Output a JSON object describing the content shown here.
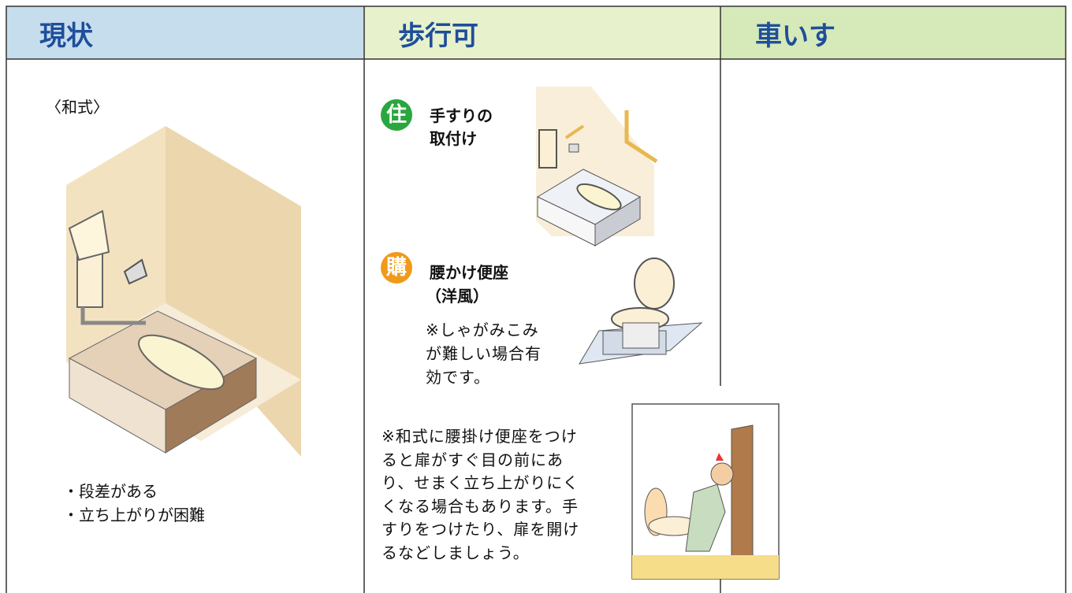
{
  "header": {
    "columns": [
      "現状",
      "歩行可",
      "車いす"
    ]
  },
  "current": {
    "label": "〈和式〉",
    "points": [
      "・段差がある",
      "・立ち上がりが困難"
    ]
  },
  "walkable": {
    "items": [
      {
        "badge": "住",
        "title": [
          "手すりの",
          "取付け"
        ]
      },
      {
        "badge": "購",
        "title": [
          "腰かけ便座",
          "（洋風）"
        ],
        "note": [
          "※しゃがみこみ",
          "が難しい場合有",
          "効です。"
        ]
      }
    ],
    "note": [
      "※和式に腰掛け便座をつけ",
      "ると扉がすぐ目の前にあ",
      "り、せまく立ち上がりにく",
      "くなる場合もあります。手",
      "すりをつけたり、扉を開け",
      "るなどしましょう。"
    ]
  }
}
